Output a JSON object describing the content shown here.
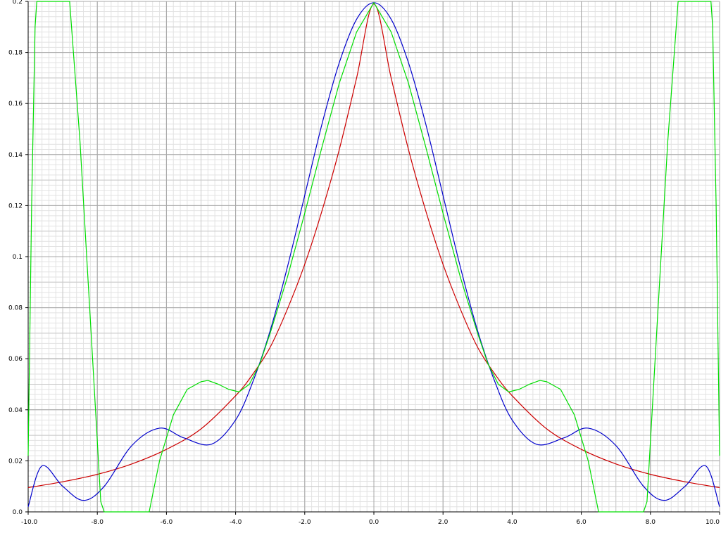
{
  "chart_data": {
    "type": "line",
    "title": "",
    "xlabel": "",
    "ylabel": "",
    "xlim": [
      -10,
      10
    ],
    "ylim": [
      0,
      0.2
    ],
    "grid": true,
    "legend": "none",
    "x_ticks": [
      "-10.0",
      "-8.0",
      "-6.0",
      "-4.0",
      "-2.0",
      "0.0",
      "2.0",
      "4.0",
      "6.0",
      "8.0",
      "10.0"
    ],
    "y_ticks": [
      "0.0",
      "0.02",
      "0.04",
      "0.06",
      "0.08",
      "0.1",
      "0.12",
      "0.14",
      "0.16",
      "0.18",
      "0.2"
    ],
    "x_tick_values": [
      -10,
      -8,
      -6,
      -4,
      -2,
      0,
      2,
      4,
      6,
      8,
      10
    ],
    "y_tick_values": [
      0,
      0.02,
      0.04,
      0.06,
      0.08,
      0.1,
      0.12,
      0.14,
      0.16,
      0.18,
      0.2
    ],
    "series": [
      {
        "color": "#cc0000",
        "x": [
          -10,
          -9,
          -8,
          -7,
          -6,
          -5,
          -4,
          -3.5,
          -3,
          -2.5,
          -2,
          -1.5,
          -1,
          -0.5,
          0,
          0.5,
          1,
          1.5,
          2,
          2.5,
          3,
          3.5,
          4,
          5,
          6,
          7,
          8,
          9,
          10
        ],
        "y": [
          0.0095,
          0.0118,
          0.0147,
          0.0188,
          0.0245,
          0.0325,
          0.0455,
          0.054,
          0.0645,
          0.0795,
          0.097,
          0.118,
          0.142,
          0.17,
          0.199,
          0.17,
          0.142,
          0.118,
          0.097,
          0.0795,
          0.0645,
          0.054,
          0.0455,
          0.0325,
          0.0245,
          0.0188,
          0.0147,
          0.0118,
          0.0095
        ]
      },
      {
        "color": "#0000cc",
        "x": [
          -10,
          -9.6,
          -9,
          -8.4,
          -7.8,
          -7.0,
          -6.2,
          -5.5,
          -4.7,
          -4.0,
          -3.5,
          -3.0,
          -2.5,
          -2.0,
          -1.5,
          -1.0,
          -0.5,
          0,
          0.5,
          1.0,
          1.5,
          2.0,
          2.5,
          3.0,
          3.5,
          4.0,
          4.7,
          5.5,
          6.2,
          7.0,
          7.8,
          8.4,
          9.0,
          9.6,
          10
        ],
        "y": [
          0.002,
          0.018,
          0.01,
          0.0045,
          0.01,
          0.026,
          0.0328,
          0.029,
          0.0265,
          0.036,
          0.051,
          0.071,
          0.096,
          0.124,
          0.152,
          0.176,
          0.193,
          0.1995,
          0.193,
          0.176,
          0.152,
          0.124,
          0.096,
          0.071,
          0.051,
          0.036,
          0.0265,
          0.029,
          0.0328,
          0.026,
          0.01,
          0.0045,
          0.01,
          0.018,
          0.002
        ]
      },
      {
        "color": "#00dd00",
        "x": [
          -10,
          -9.9,
          -9.8,
          -9.75,
          -9.7,
          -9.5,
          -9.0,
          -8.8,
          -8.5,
          -8.2,
          -7.9,
          -7.8,
          -6.5,
          -6.2,
          -5.8,
          -5.4,
          -5.0,
          -4.8,
          -4.5,
          -4.2,
          -3.9,
          -3.6,
          -3.3,
          -3.0,
          -2.5,
          -2.0,
          -1.5,
          -1.0,
          -0.5,
          0,
          0.5,
          1.0,
          1.5,
          2.0,
          2.5,
          3.0,
          3.3,
          3.6,
          3.9,
          4.2,
          4.5,
          4.8,
          5.0,
          5.4,
          5.8,
          6.2,
          6.5,
          7.8,
          7.9,
          8.2,
          8.5,
          8.8,
          9.0,
          9.5,
          9.7,
          9.75,
          9.8,
          9.9,
          10
        ],
        "y": [
          0.022,
          0.12,
          0.19,
          0.2,
          0.2,
          0.2,
          0.2,
          0.2,
          0.145,
          0.075,
          0.004,
          0.0,
          0.0,
          0.02,
          0.038,
          0.048,
          0.051,
          0.0515,
          0.05,
          0.048,
          0.047,
          0.05,
          0.058,
          0.07,
          0.092,
          0.117,
          0.143,
          0.168,
          0.188,
          0.1995,
          0.188,
          0.168,
          0.143,
          0.117,
          0.092,
          0.07,
          0.058,
          0.05,
          0.047,
          0.048,
          0.05,
          0.0515,
          0.051,
          0.048,
          0.038,
          0.02,
          0.0,
          0.0,
          0.004,
          0.075,
          0.145,
          0.2,
          0.2,
          0.2,
          0.2,
          0.2,
          0.19,
          0.12,
          0.022
        ]
      }
    ]
  }
}
